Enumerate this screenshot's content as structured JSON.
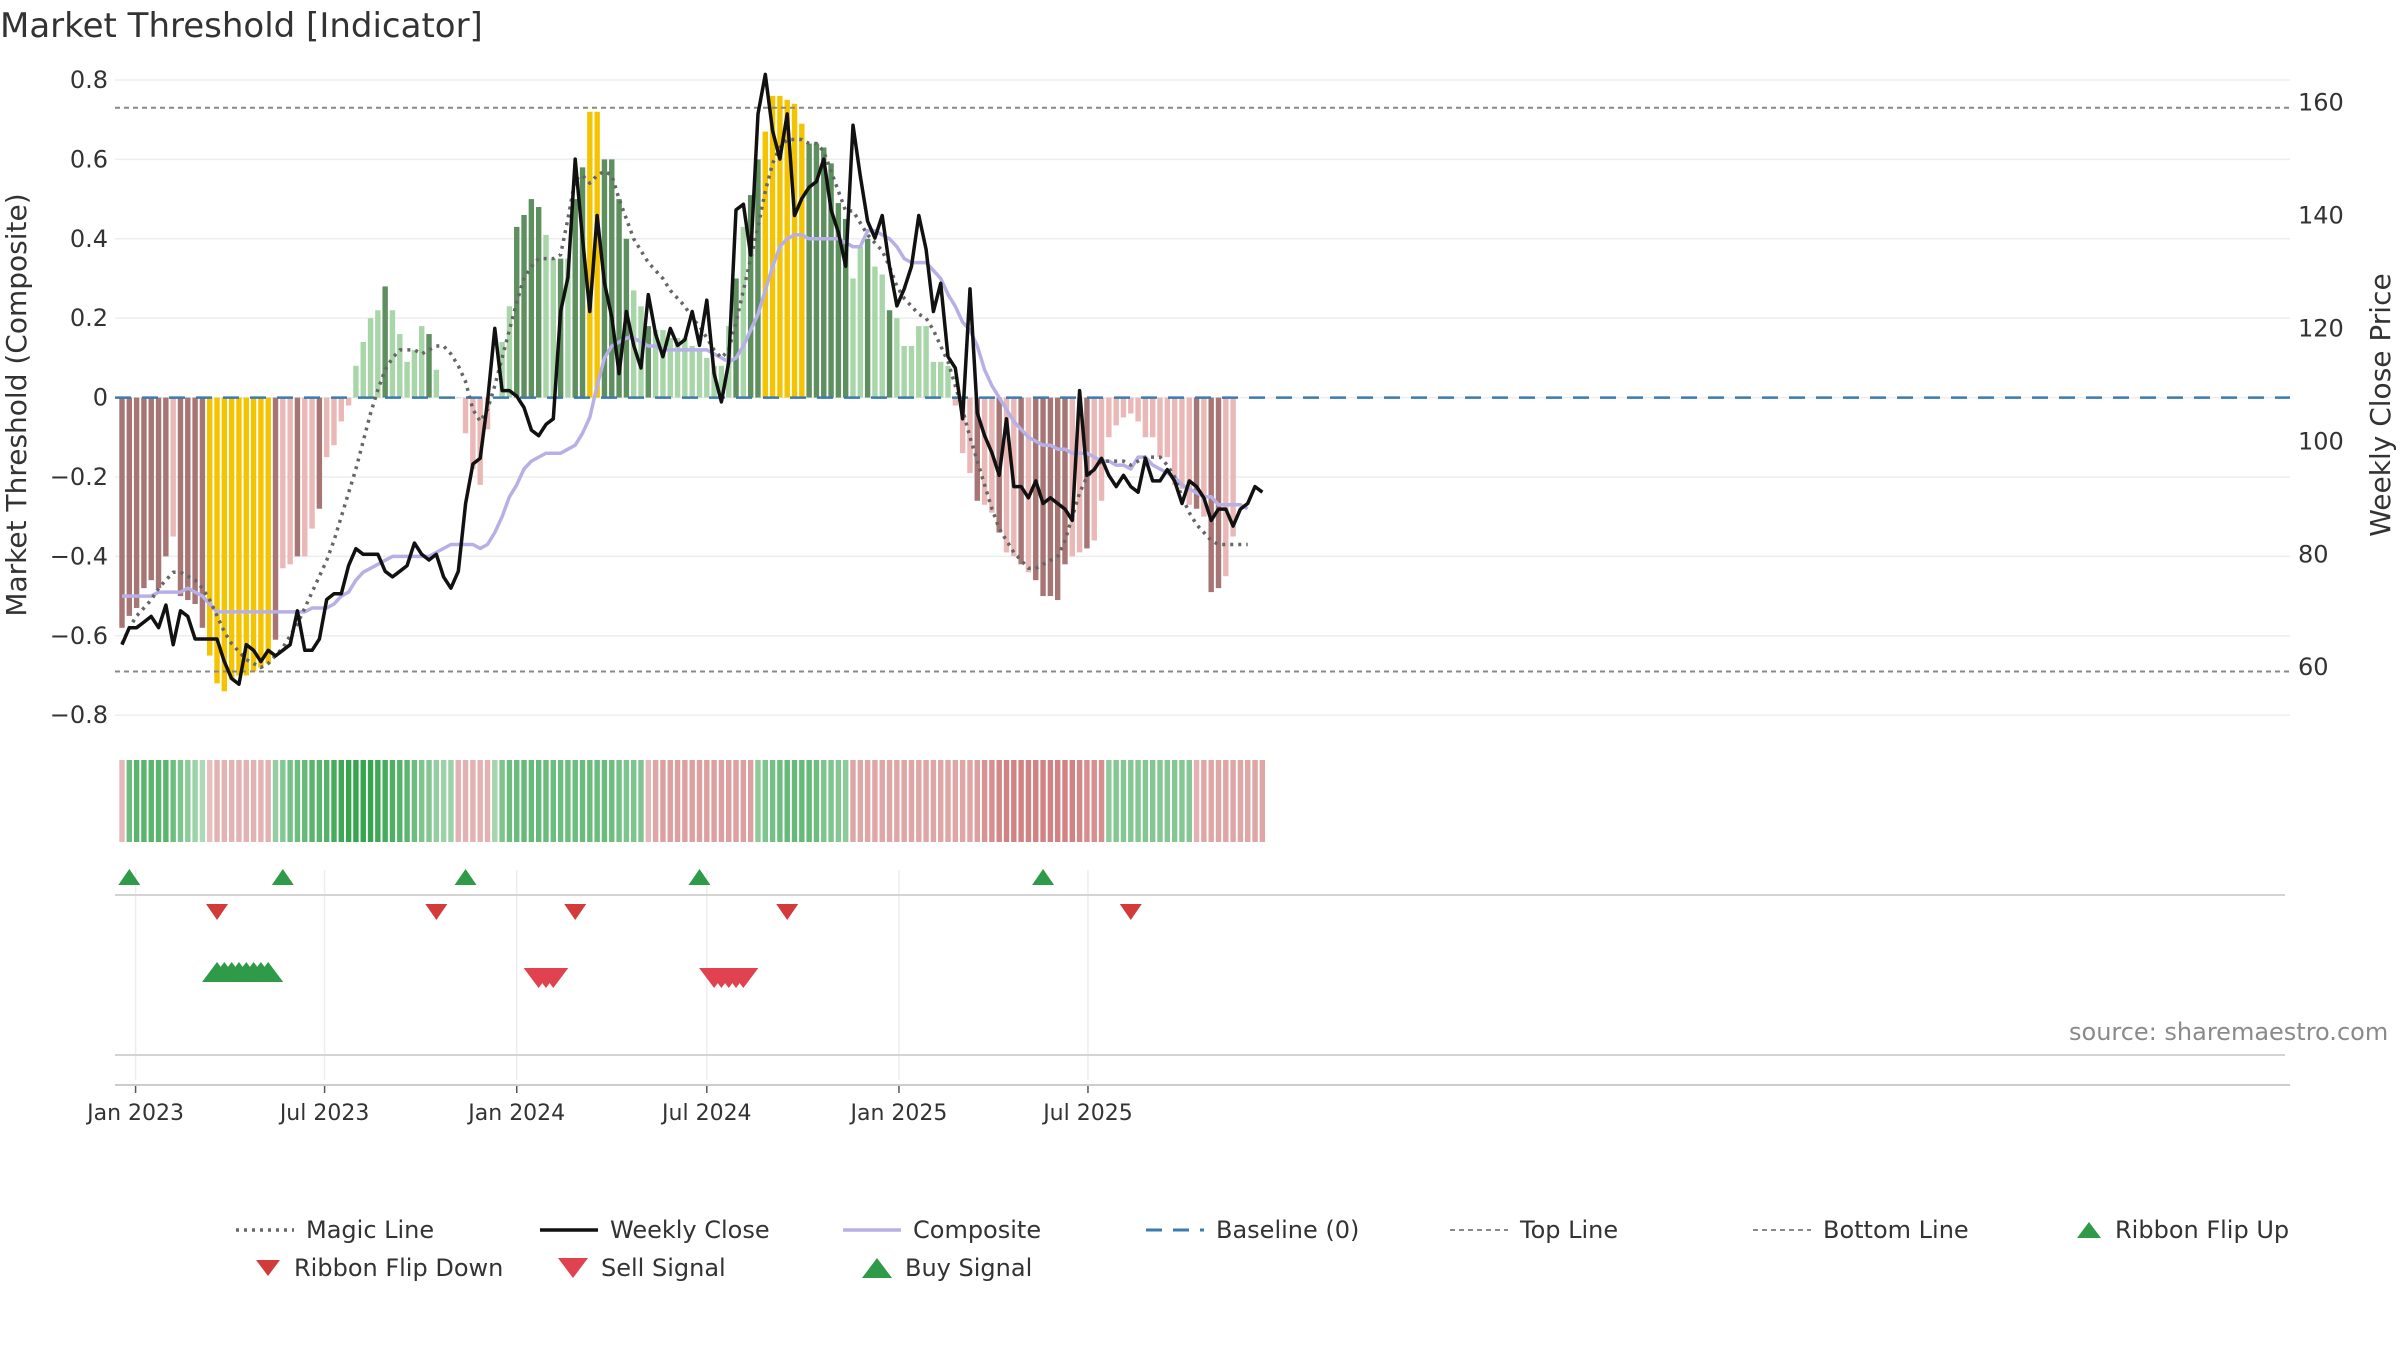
{
  "title": "Market Threshold [Indicator]",
  "source": "source: sharemaestro.com",
  "colors": {
    "pos_strong": "#5e8f5e",
    "pos_light": "#a9d6a9",
    "neg_strong": "#a87575",
    "neg_light": "#eab8b6",
    "extreme": "#f5c400",
    "close": "#111111",
    "composite": "#b7b0e6",
    "magic": "#666666",
    "baseline": "#3a7bb0",
    "threshold": "#888888",
    "up": "#2f9a47",
    "down": "#d33a3a"
  },
  "chart_data": {
    "type": "bar",
    "x_start": "2022-12-19",
    "interval_days": 7,
    "ylabel_left": "Market Threshold (Composite)",
    "ylabel_right": "Weekly Close Price",
    "ylim_left": [
      -0.85,
      0.8
    ],
    "ylim_right": [
      48,
      164
    ],
    "yticks_left": [
      0.8,
      0.6,
      0.4,
      0.2,
      0,
      -0.2,
      -0.4,
      -0.6,
      -0.8
    ],
    "ytick_labels_left": [
      "0.8",
      "0.6",
      "0.4",
      "0.2",
      "0",
      "−0.2",
      "−0.4",
      "−0.6",
      "−0.8"
    ],
    "yticks_right": [
      60,
      80,
      100,
      120,
      140,
      160
    ],
    "xticks": [
      {
        "date": "2023-01-01",
        "label": "Jan 2023"
      },
      {
        "date": "2023-07-01",
        "label": "Jul 2023"
      },
      {
        "date": "2024-01-01",
        "label": "Jan 2024"
      },
      {
        "date": "2024-07-01",
        "label": "Jul 2024"
      },
      {
        "date": "2025-01-01",
        "label": "Jan 2025"
      },
      {
        "date": "2025-07-01",
        "label": "Jul 2025"
      }
    ],
    "top_line": 0.73,
    "bottom_line": -0.69,
    "series": [
      {
        "name": "Weekly Close",
        "axis": "right",
        "values": [
          64,
          67,
          67,
          68,
          69,
          67,
          71,
          64,
          70,
          69,
          65,
          65,
          65,
          65,
          61,
          58,
          57,
          64,
          63,
          61,
          63,
          62,
          63,
          64,
          70,
          63,
          63,
          65,
          72,
          73,
          73,
          78,
          81,
          80,
          80,
          80,
          77,
          76,
          77,
          78,
          82,
          80,
          79,
          80,
          76,
          74,
          77,
          89,
          96,
          97,
          107,
          120,
          109,
          109,
          108,
          106,
          102,
          101,
          103,
          104,
          123,
          129,
          150,
          136,
          123,
          140,
          128,
          122,
          112,
          123,
          117,
          113,
          126,
          119,
          115,
          120,
          117,
          118,
          123,
          117,
          125,
          112,
          107,
          114,
          141,
          142,
          133,
          158,
          165,
          155,
          150,
          158,
          140,
          143,
          145,
          146,
          150,
          141,
          137,
          131,
          156,
          147,
          139,
          136,
          140,
          131,
          124,
          127,
          131,
          140,
          134,
          123,
          128,
          115,
          113,
          104,
          127,
          105,
          101,
          98,
          94,
          104,
          92,
          92,
          90,
          93,
          89,
          90,
          89,
          88,
          86,
          109,
          94,
          95,
          97,
          94,
          92,
          94,
          92,
          91,
          97,
          93,
          93,
          95,
          93,
          89,
          93,
          92,
          90,
          86,
          88,
          88,
          85,
          88,
          89,
          92,
          91
        ]
      },
      {
        "name": "Composite",
        "values": [
          -0.5,
          -0.5,
          -0.5,
          -0.5,
          -0.5,
          -0.49,
          -0.49,
          -0.49,
          -0.49,
          -0.48,
          -0.49,
          -0.5,
          -0.52,
          -0.54,
          -0.54,
          -0.54,
          -0.54,
          -0.54,
          -0.54,
          -0.54,
          -0.54,
          -0.54,
          -0.54,
          -0.54,
          -0.54,
          -0.54,
          -0.53,
          -0.53,
          -0.53,
          -0.52,
          -0.5,
          -0.49,
          -0.46,
          -0.44,
          -0.43,
          -0.42,
          -0.41,
          -0.4,
          -0.4,
          -0.4,
          -0.4,
          -0.4,
          -0.4,
          -0.39,
          -0.38,
          -0.37,
          -0.37,
          -0.37,
          -0.37,
          -0.38,
          -0.37,
          -0.34,
          -0.3,
          -0.25,
          -0.22,
          -0.18,
          -0.16,
          -0.15,
          -0.14,
          -0.14,
          -0.14,
          -0.13,
          -0.12,
          -0.09,
          -0.05,
          0.03,
          0.1,
          0.13,
          0.14,
          0.15,
          0.15,
          0.14,
          0.13,
          0.13,
          0.12,
          0.12,
          0.12,
          0.12,
          0.12,
          0.12,
          0.12,
          0.11,
          0.1,
          0.09,
          0.1,
          0.13,
          0.17,
          0.21,
          0.27,
          0.33,
          0.38,
          0.4,
          0.41,
          0.41,
          0.4,
          0.4,
          0.4,
          0.4,
          0.4,
          0.39,
          0.38,
          0.38,
          0.42,
          0.42,
          0.41,
          0.4,
          0.38,
          0.35,
          0.34,
          0.34,
          0.34,
          0.32,
          0.3,
          0.26,
          0.23,
          0.19,
          0.17,
          0.13,
          0.07,
          0.03,
          0,
          -0.03,
          -0.06,
          -0.08,
          -0.1,
          -0.11,
          -0.12,
          -0.12,
          -0.13,
          -0.13,
          -0.14,
          -0.14,
          -0.14,
          -0.15,
          -0.16,
          -0.16,
          -0.17,
          -0.17,
          -0.18,
          -0.15,
          -0.15,
          -0.17,
          -0.18,
          -0.19,
          -0.2,
          -0.22,
          -0.23,
          -0.24,
          -0.25,
          -0.25,
          -0.27,
          -0.27,
          -0.27,
          -0.27,
          -0.28
        ]
      },
      {
        "name": "Magic Line",
        "values": [
          -0.62,
          -0.58,
          -0.55,
          -0.53,
          -0.51,
          -0.48,
          -0.46,
          -0.44,
          -0.44,
          -0.45,
          -0.46,
          -0.48,
          -0.51,
          -0.55,
          -0.59,
          -0.62,
          -0.64,
          -0.66,
          -0.67,
          -0.68,
          -0.67,
          -0.65,
          -0.63,
          -0.6,
          -0.57,
          -0.53,
          -0.49,
          -0.45,
          -0.41,
          -0.36,
          -0.3,
          -0.24,
          -0.18,
          -0.11,
          -0.04,
          0.02,
          0.07,
          0.1,
          0.12,
          0.12,
          0.12,
          0.11,
          0.12,
          0.13,
          0.13,
          0.11,
          0.08,
          0.04,
          -0.03,
          -0.06,
          -0.03,
          0.03,
          0.1,
          0.17,
          0.24,
          0.3,
          0.33,
          0.35,
          0.35,
          0.35,
          0.36,
          0.45,
          0.55,
          0.56,
          0.54,
          0.56,
          0.57,
          0.56,
          0.5,
          0.45,
          0.4,
          0.37,
          0.34,
          0.32,
          0.3,
          0.27,
          0.25,
          0.23,
          0.2,
          0.18,
          0.15,
          0.12,
          0.1,
          0.12,
          0.19,
          0.27,
          0.35,
          0.43,
          0.52,
          0.59,
          0.63,
          0.65,
          0.65,
          0.65,
          0.64,
          0.64,
          0.62,
          0.57,
          0.52,
          0.47,
          0.47,
          0.44,
          0.41,
          0.39,
          0.37,
          0.33,
          0.28,
          0.25,
          0.23,
          0.21,
          0.2,
          0.17,
          0.13,
          0.09,
          0.03,
          -0.03,
          -0.1,
          -0.16,
          -0.22,
          -0.28,
          -0.33,
          -0.36,
          -0.39,
          -0.41,
          -0.43,
          -0.43,
          -0.42,
          -0.41,
          -0.4,
          -0.36,
          -0.3,
          -0.24,
          -0.2,
          -0.18,
          -0.16,
          -0.16,
          -0.16,
          -0.16,
          -0.17,
          -0.16,
          -0.15,
          -0.15,
          -0.15,
          -0.17,
          -0.2,
          -0.25,
          -0.29,
          -0.32,
          -0.34,
          -0.36,
          -0.37,
          -0.37,
          -0.37,
          -0.37,
          -0.37
        ]
      },
      {
        "name": "Baseline (0)"
      },
      {
        "name": "Top Line"
      },
      {
        "name": "Bottom Line"
      }
    ],
    "bars": [
      -0.58,
      -0.55,
      -0.53,
      -0.48,
      -0.46,
      -0.48,
      -0.4,
      -0.35,
      -0.5,
      -0.51,
      -0.52,
      -0.58,
      -0.65,
      -0.72,
      -0.74,
      -0.71,
      -0.7,
      -0.7,
      -0.69,
      -0.68,
      -0.67,
      -0.61,
      -0.43,
      -0.42,
      -0.4,
      -0.4,
      -0.33,
      -0.28,
      -0.15,
      -0.12,
      -0.06,
      -0.02,
      0.08,
      0.14,
      0.2,
      0.22,
      0.28,
      0.22,
      0.16,
      0.09,
      0.12,
      0.18,
      0.16,
      0.07,
      0,
      0,
      0,
      -0.09,
      -0.18,
      -0.22,
      -0.08,
      0,
      0.14,
      0.23,
      0.43,
      0.46,
      0.5,
      0.48,
      0.41,
      0.35,
      0.35,
      0.35,
      0.5,
      0.58,
      0.72,
      0.72,
      0.6,
      0.6,
      0.5,
      0.4,
      0.27,
      0.23,
      0.18,
      0.17,
      0.17,
      0.15,
      0.15,
      0.15,
      0.13,
      0.12,
      0.1,
      0.08,
      0.08,
      0.18,
      0.3,
      0.43,
      0.51,
      0.6,
      0.67,
      0.76,
      0.76,
      0.75,
      0.74,
      0.69,
      0.64,
      0.64,
      0.63,
      0.59,
      0.49,
      0.45,
      0.3,
      0.38,
      0.4,
      0.33,
      0.31,
      0.22,
      0.2,
      0.13,
      0.13,
      0.18,
      0.18,
      0.09,
      0.09,
      0.08,
      -0.02,
      -0.14,
      -0.19,
      -0.26,
      -0.27,
      -0.29,
      -0.34,
      -0.39,
      -0.4,
      -0.42,
      -0.44,
      -0.46,
      -0.5,
      -0.5,
      -0.51,
      -0.42,
      -0.4,
      -0.39,
      -0.38,
      -0.36,
      -0.26,
      -0.1,
      -0.07,
      -0.05,
      -0.04,
      -0.06,
      -0.1,
      -0.1,
      -0.15,
      -0.15,
      -0.22,
      -0.23,
      -0.27,
      -0.28,
      -0.3,
      -0.49,
      -0.48,
      -0.45,
      -0.35
    ],
    "ribbon": [
      -0.25,
      0.6,
      0.72,
      0.72,
      0.72,
      0.72,
      0.72,
      0.6,
      0.5,
      0.4,
      0.3,
      0.2,
      -0.2,
      -0.3,
      -0.3,
      -0.3,
      -0.3,
      -0.3,
      -0.3,
      -0.3,
      -0.3,
      0.35,
      0.45,
      0.55,
      0.6,
      0.65,
      0.72,
      0.72,
      0.75,
      0.85,
      0.9,
      0.95,
      0.95,
      0.95,
      0.95,
      0.9,
      0.85,
      0.8,
      0.75,
      0.7,
      0.6,
      0.5,
      0.45,
      0.35,
      0.3,
      0.3,
      -0.3,
      -0.3,
      -0.3,
      -0.3,
      -0.3,
      0.25,
      0.5,
      0.6,
      0.62,
      0.65,
      0.65,
      0.65,
      0.62,
      0.6,
      0.6,
      0.6,
      0.6,
      0.62,
      0.62,
      0.62,
      0.62,
      0.6,
      0.55,
      0.5,
      0.5,
      0.48,
      -0.25,
      -0.4,
      -0.45,
      -0.45,
      -0.45,
      -0.45,
      -0.45,
      -0.45,
      -0.45,
      -0.45,
      -0.45,
      -0.45,
      -0.45,
      -0.45,
      -0.45,
      0.4,
      0.5,
      0.55,
      0.6,
      0.65,
      0.65,
      0.65,
      0.65,
      0.6,
      0.5,
      0.5,
      0.45,
      0.4,
      -0.4,
      -0.4,
      -0.4,
      -0.4,
      -0.4,
      -0.4,
      -0.4,
      -0.4,
      -0.4,
      -0.4,
      -0.4,
      -0.4,
      -0.4,
      -0.4,
      -0.4,
      -0.4,
      -0.4,
      -0.45,
      -0.55,
      -0.6,
      -0.65,
      -0.7,
      -0.7,
      -0.7,
      -0.7,
      -0.7,
      -0.7,
      -0.7,
      -0.7,
      -0.7,
      -0.7,
      -0.65,
      -0.6,
      -0.6,
      -0.6,
      0.4,
      0.45,
      0.45,
      0.45,
      0.45,
      0.45,
      0.45,
      0.45,
      0.45,
      0.45,
      0.45,
      0.45,
      -0.3,
      -0.4,
      -0.4,
      -0.4,
      -0.4,
      -0.4,
      -0.4,
      -0.4,
      -0.4,
      -0.4
    ],
    "ribbon_flip_up": [
      "2022-12-26",
      "2023-05-22",
      "2023-11-13",
      "2024-06-24",
      "2025-05-19"
    ],
    "ribbon_flip_down": [
      "2023-03-20",
      "2023-10-16",
      "2024-02-26",
      "2024-09-16",
      "2025-08-11"
    ],
    "buy_signals": [
      "2023-03-20",
      "2023-03-27",
      "2023-04-03",
      "2023-04-10",
      "2023-04-17",
      "2023-04-24",
      "2023-05-01",
      "2023-05-08"
    ],
    "sell_signals": [
      "2024-01-22",
      "2024-01-29",
      "2024-02-05",
      "2024-07-08",
      "2024-07-15",
      "2024-07-22",
      "2024-07-29",
      "2024-08-05"
    ]
  },
  "legend": [
    {
      "name": "Magic Line",
      "kind": "dotted"
    },
    {
      "name": "Weekly Close",
      "kind": "solid"
    },
    {
      "name": "Composite",
      "kind": "lavender"
    },
    {
      "name": "Baseline (0)",
      "kind": "dashed"
    },
    {
      "name": "Top Line",
      "kind": "thin"
    },
    {
      "name": "Bottom Line",
      "kind": "thin"
    },
    {
      "name": "Ribbon Flip Up",
      "kind": "tri-up-small"
    },
    {
      "name": "Ribbon Flip Down",
      "kind": "tri-down-small"
    },
    {
      "name": "Sell Signal",
      "kind": "tri-down-big"
    },
    {
      "name": "Buy Signal",
      "kind": "tri-up-big"
    }
  ]
}
